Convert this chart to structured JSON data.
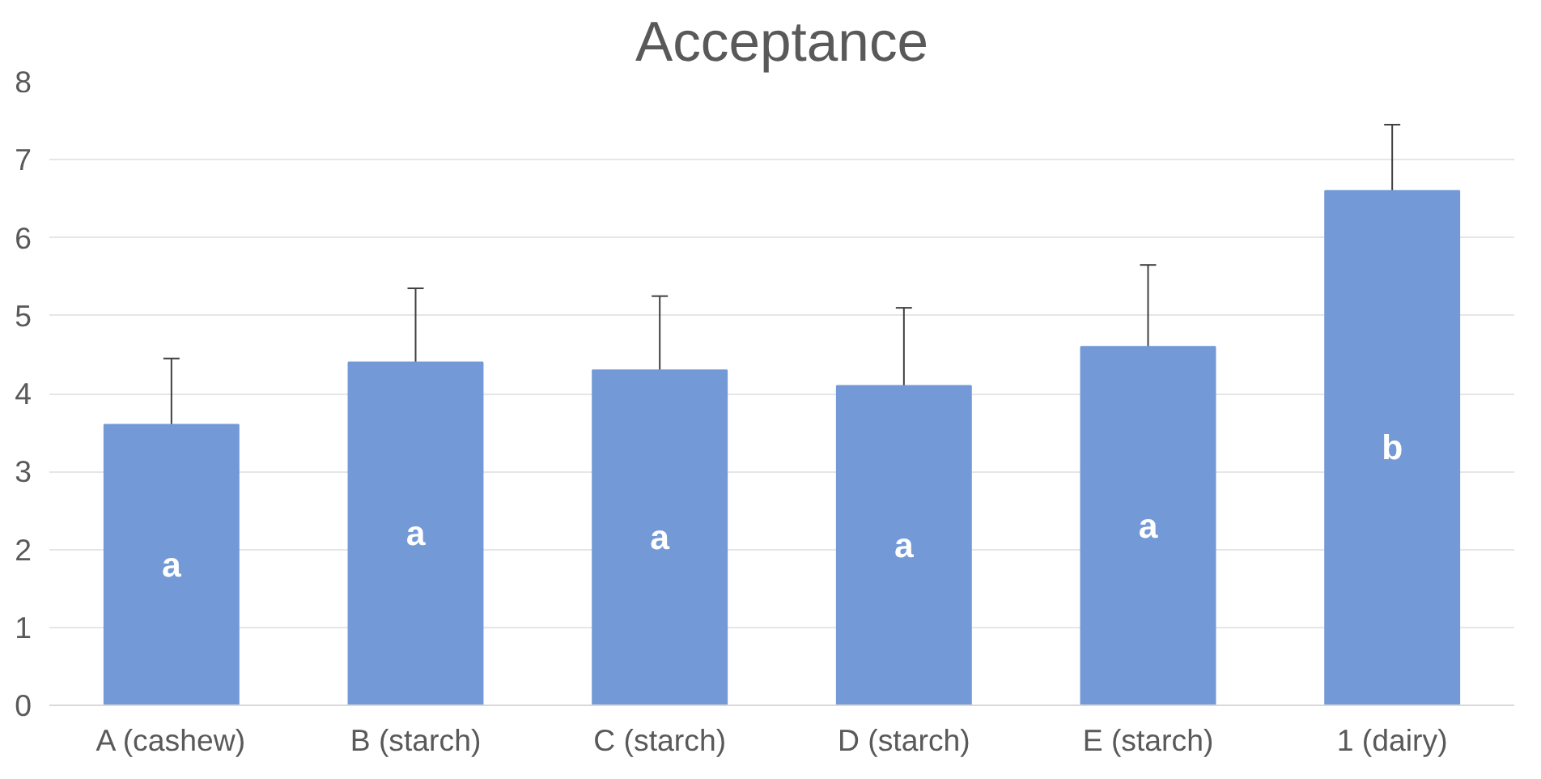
{
  "chart_data": {
    "type": "bar",
    "title": "Acceptance",
    "categories": [
      "A (cashew)",
      "B (starch)",
      "C (starch)",
      "D (starch)",
      "E (starch)",
      "1 (dairy)"
    ],
    "values": [
      3.6,
      4.4,
      4.3,
      4.1,
      4.6,
      6.6
    ],
    "errors": [
      0.85,
      0.95,
      0.95,
      1.0,
      1.05,
      0.85
    ],
    "color": "#7399d6",
    "ylim": [
      0,
      8
    ],
    "yticks": [
      0,
      1,
      2,
      3,
      4,
      5,
      6,
      7,
      8
    ],
    "grid": "y",
    "annotations": [
      "a",
      "a",
      "a",
      "a",
      "a",
      "b"
    ]
  }
}
